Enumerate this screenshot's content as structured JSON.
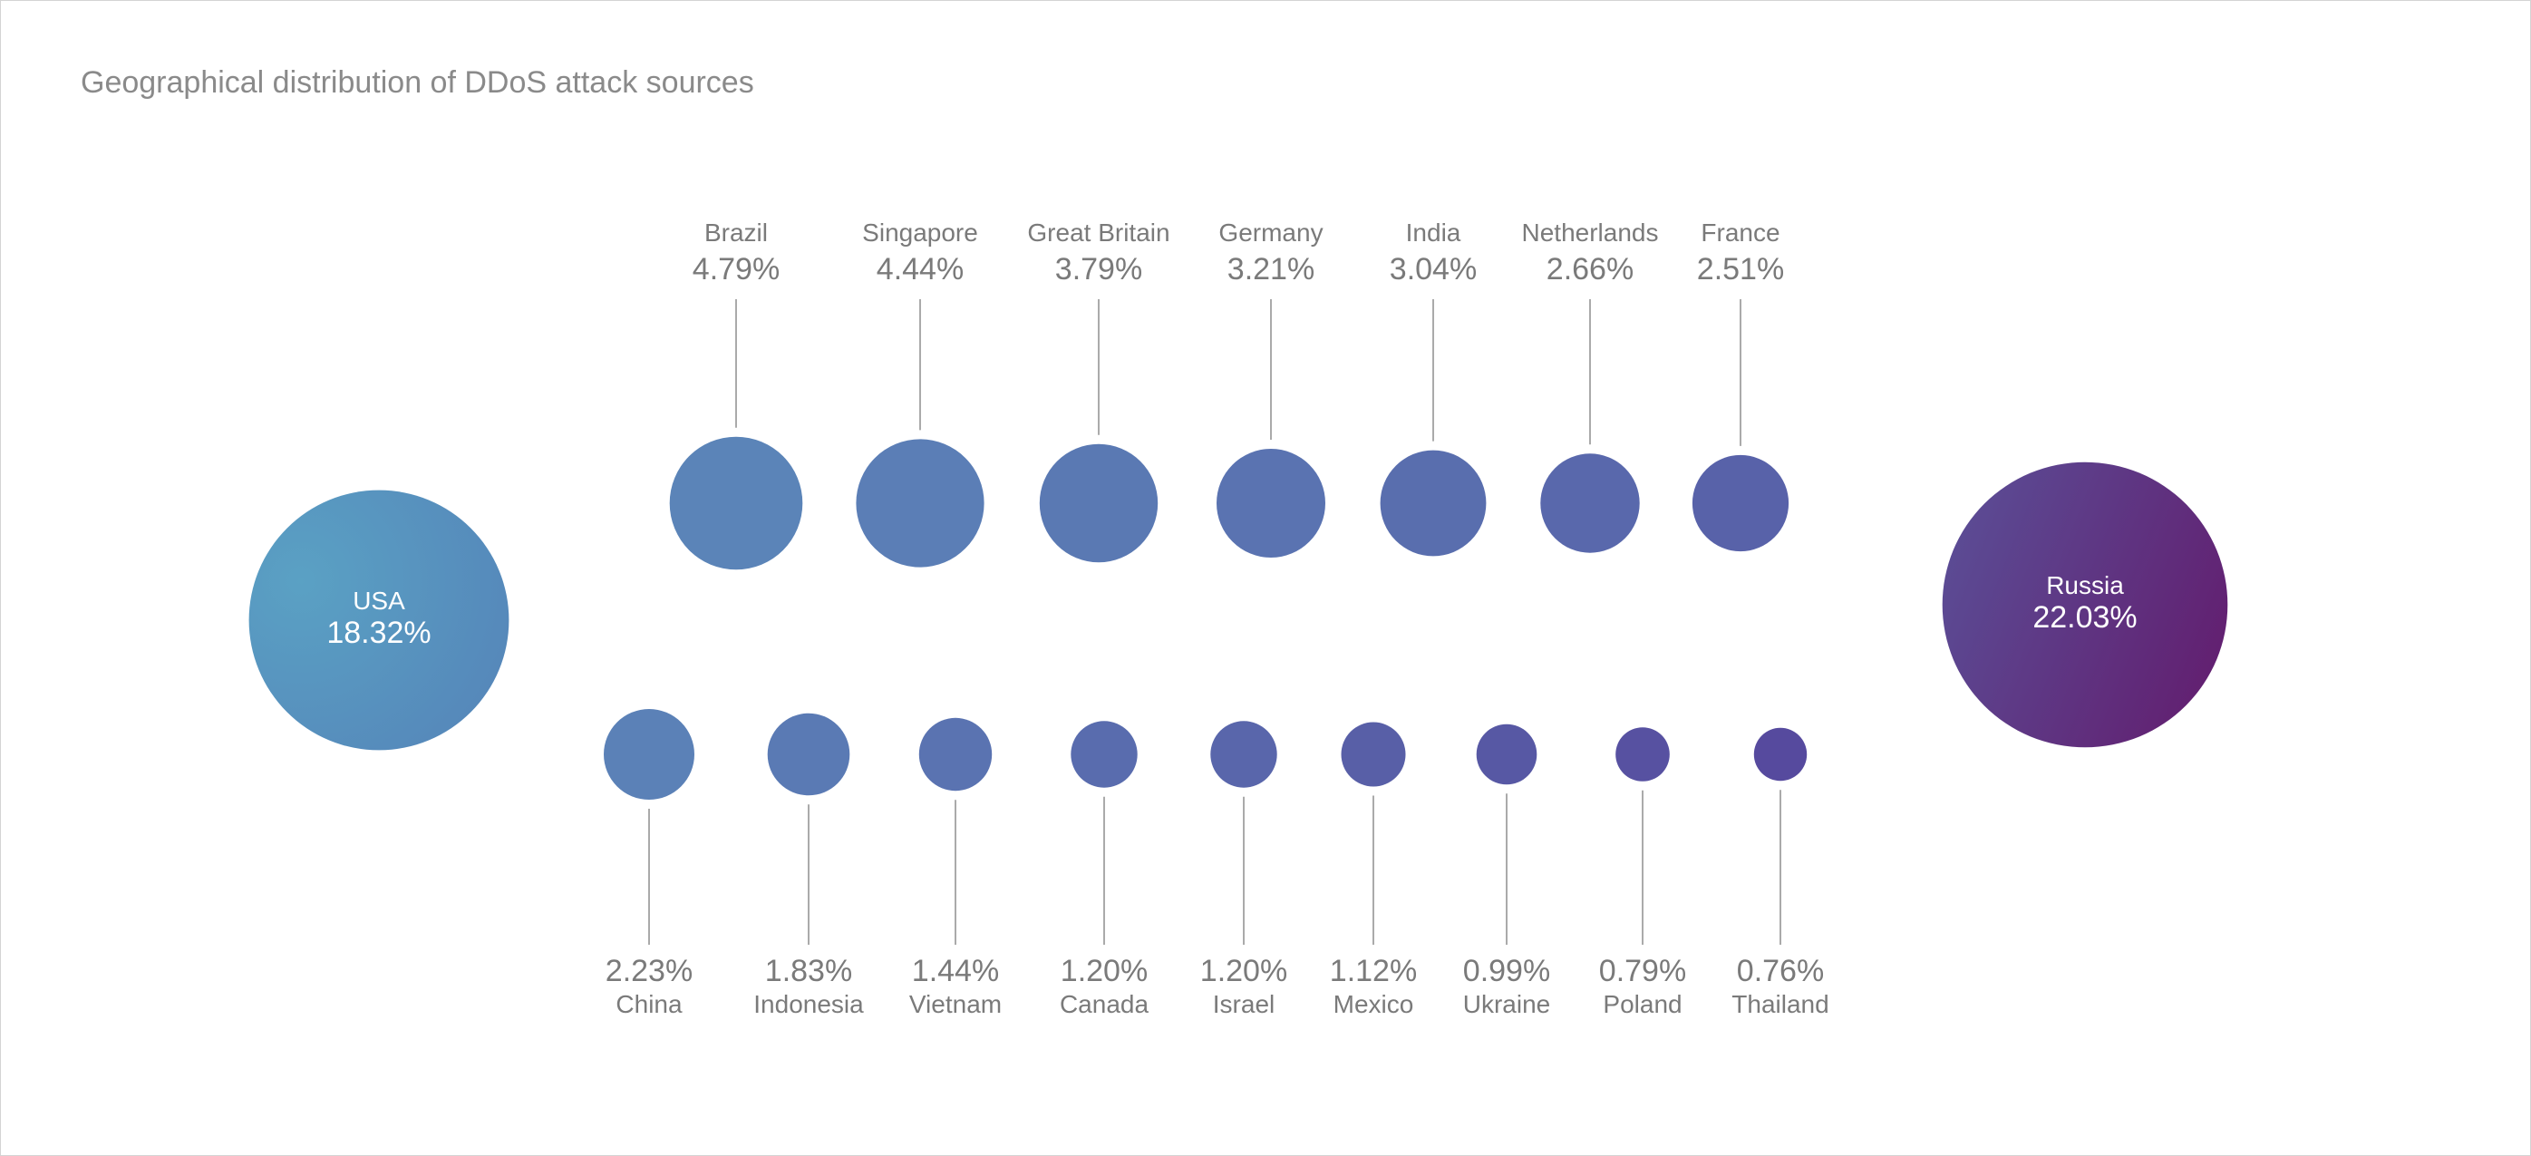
{
  "chart_data": {
    "type": "bubble",
    "title": "Geographical distribution of DDoS attack sources",
    "unit": "%",
    "colors": {
      "usa_start": "#5aa1c4",
      "usa_end": "#5585b9",
      "russia_start": "#5b4c95",
      "russia_end": "#621f70",
      "small_left": "#5b84b8",
      "small_right": "#56479d",
      "leader": "#aaaaaa",
      "label": "#7a7a7a"
    },
    "major": [
      {
        "country": "USA",
        "label": "18.32%",
        "value": 18.32
      },
      {
        "country": "Russia",
        "label": "22.03%",
        "value": 22.03
      }
    ],
    "top_row": [
      {
        "country": "Brazil",
        "label": "4.79%",
        "value": 4.79
      },
      {
        "country": "Singapore",
        "label": "4.44%",
        "value": 4.44
      },
      {
        "country": "Great Britain",
        "label": "3.79%",
        "value": 3.79
      },
      {
        "country": "Germany",
        "label": "3.21%",
        "value": 3.21
      },
      {
        "country": "India",
        "label": "3.04%",
        "value": 3.04
      },
      {
        "country": "Netherlands",
        "label": "2.66%",
        "value": 2.66
      },
      {
        "country": "France",
        "label": "2.51%",
        "value": 2.51
      }
    ],
    "bottom_row": [
      {
        "country": "China",
        "label": "2.23%",
        "value": 2.23
      },
      {
        "country": "Indonesia",
        "label": "1.83%",
        "value": 1.83
      },
      {
        "country": "Vietnam",
        "label": "1.44%",
        "value": 1.44
      },
      {
        "country": "Canada",
        "label": "1.20%",
        "value": 1.2
      },
      {
        "country": "Israel",
        "label": "1.20%",
        "value": 1.2
      },
      {
        "country": "Mexico",
        "label": "1.12%",
        "value": 1.12
      },
      {
        "country": "Ukraine",
        "label": "0.99%",
        "value": 0.99
      },
      {
        "country": "Poland",
        "label": "0.79%",
        "value": 0.79
      },
      {
        "country": "Thailand",
        "label": "0.76%",
        "value": 0.76
      }
    ]
  }
}
